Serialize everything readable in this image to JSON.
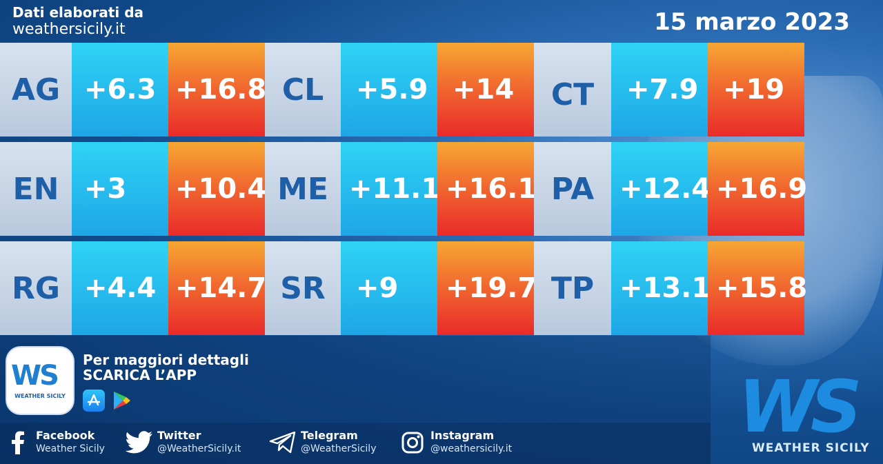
{
  "header": {
    "line1": "Dati elaborati da",
    "line2": "weathersicily.it",
    "date": "15 marzo 2023"
  },
  "rows": [
    [
      {
        "prov": "AG",
        "min": "+6.3",
        "max": "+16.8"
      },
      {
        "prov": "CL",
        "min": "+5.9",
        "max": "+14"
      },
      {
        "prov": "CT",
        "min": "+7.9",
        "max": "+19"
      }
    ],
    [
      {
        "prov": "EN",
        "min": "+3",
        "max": "+10.4"
      },
      {
        "prov": "ME",
        "min": "+11.1",
        "max": "+16.1"
      },
      {
        "prov": "PA",
        "min": "+12.4",
        "max": "+16.9"
      }
    ],
    [
      {
        "prov": "RG",
        "min": "+4.4",
        "max": "+14.7"
      },
      {
        "prov": "SR",
        "min": "+9",
        "max": "+19.7"
      },
      {
        "prov": "TP",
        "min": "+13.1",
        "max": "+15.8"
      }
    ]
  ],
  "promo": {
    "line1": "Per maggiori dettagli",
    "line2": "SCARICA L’APP",
    "app_logo_letters": "WS",
    "app_logo_name": "WEATHER SICILY"
  },
  "social": [
    {
      "icon": "facebook-icon",
      "name": "Facebook",
      "handle": "Weather Sicily"
    },
    {
      "icon": "twitter-icon",
      "name": "Twitter",
      "handle": "@WeatherSicily.it"
    },
    {
      "icon": "telegram-icon",
      "name": "Telegram",
      "handle": "@WeatherSicily"
    },
    {
      "icon": "instagram-icon",
      "name": "Instagram",
      "handle": "@weathersicily.it"
    }
  ],
  "brand": {
    "letters": "WS",
    "name": "WEATHER SICILY"
  },
  "colors": {
    "province_text": "#1f5fa8",
    "min_bg": "#1ea6e6",
    "max_bg": "#ea2a2a"
  }
}
